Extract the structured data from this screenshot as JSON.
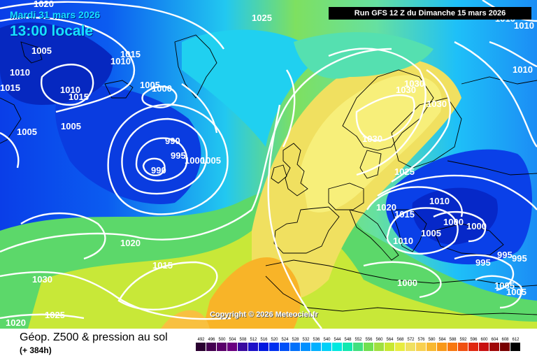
{
  "header": {
    "date": "Mardi 31 mars 2026",
    "time": "13:00 locale",
    "run": "Run GFS 12 Z du Dimanche 15 mars 2026"
  },
  "copyright": "Copyright © 2026 Meteociel.fr",
  "legend": {
    "title": "Géop. Z500 & pression au sol",
    "subtitle": "(+ 384h)",
    "scale": [
      "492",
      "496",
      "500",
      "504",
      "508",
      "512",
      "516",
      "520",
      "524",
      "528",
      "532",
      "536",
      "540",
      "544",
      "548",
      "552",
      "556",
      "560",
      "564",
      "568",
      "572",
      "576",
      "580",
      "584",
      "588",
      "592",
      "596",
      "600",
      "604",
      "608",
      "612"
    ],
    "colors": [
      "#2a0030",
      "#440050",
      "#5a006a",
      "#6a0080",
      "#3a0aa0",
      "#1c10c8",
      "#0018e0",
      "#0030f0",
      "#0050f8",
      "#0070fa",
      "#0090ff",
      "#00b0ff",
      "#00d0f8",
      "#00e8e0",
      "#10e8b0",
      "#40e080",
      "#70e050",
      "#a0e040",
      "#c8e830",
      "#e8ec40",
      "#f0e060",
      "#f8d050",
      "#f8b830",
      "#f89818",
      "#f87810",
      "#f05010",
      "#e02810",
      "#c81010",
      "#a00808",
      "#780000",
      "#000000"
    ]
  },
  "pressure_labels": [
    "1020",
    "1025",
    "1010",
    "1010",
    "1010",
    "1005",
    "1010",
    "1015",
    "1010",
    "1015",
    "1005",
    "1010",
    "1015",
    "1005",
    "1005",
    "1000",
    "990",
    "995",
    "1000",
    "1005",
    "990",
    "1020",
    "1015",
    "1030",
    "1020",
    "1025",
    "1030",
    "1030",
    "1030",
    "1030",
    "1025",
    "1020",
    "1015",
    "1010",
    "1010",
    "1005",
    "1000",
    "1000",
    "995",
    "995",
    "995",
    "1000",
    "1005",
    "1005",
    "1010"
  ],
  "icons": {
    "map": "weather-map"
  }
}
